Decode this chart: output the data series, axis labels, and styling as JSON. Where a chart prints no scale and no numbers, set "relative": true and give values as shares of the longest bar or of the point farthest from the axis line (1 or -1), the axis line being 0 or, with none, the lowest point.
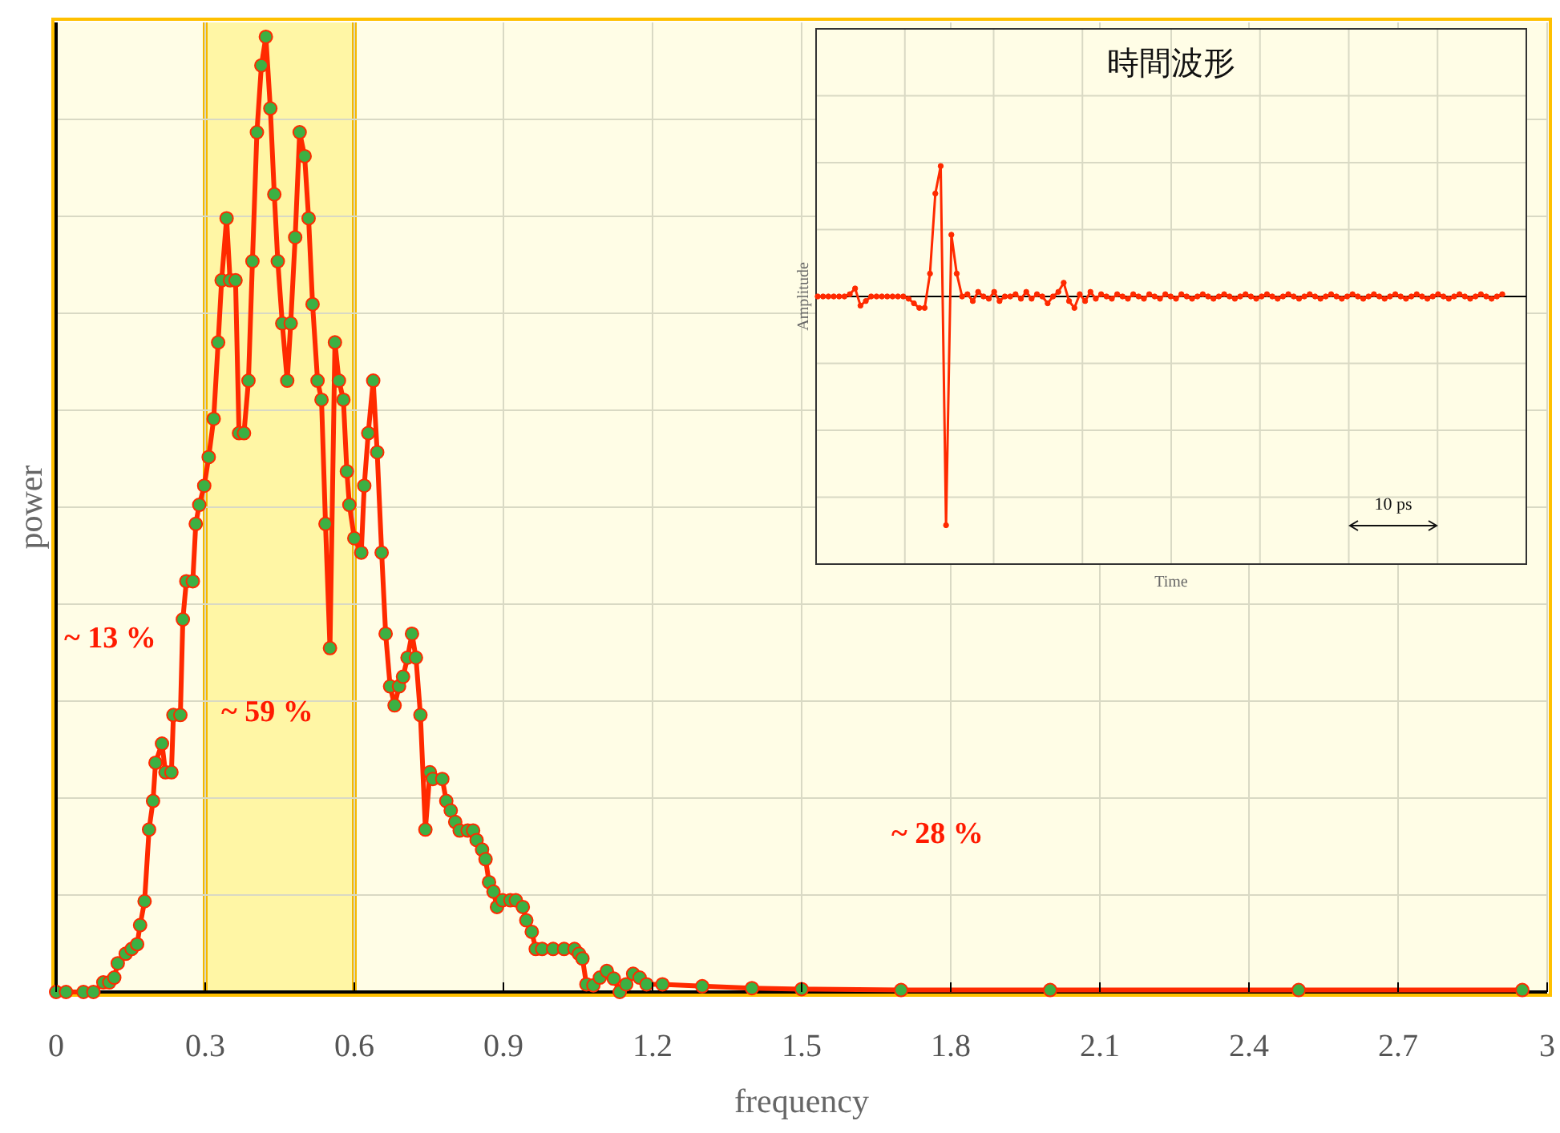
{
  "chart_data": [
    {
      "type": "line",
      "xlabel": "frequency",
      "ylabel": "power",
      "relative": true,
      "xlim": [
        0,
        3
      ],
      "xticks": [
        0,
        0.3,
        0.6,
        0.9,
        1.2,
        1.5,
        1.8,
        2.1,
        2.4,
        2.7,
        3
      ],
      "grid": true,
      "marker": "circle",
      "line_style": "solid",
      "bands": [
        {
          "axis": "x",
          "from": 0.3,
          "to": 0.6,
          "color": "#fff27a"
        }
      ],
      "annotations": [
        "~ 13 %",
        "~ 59 %",
        "~ 28 %"
      ],
      "series": [
        {
          "color": "#ff2a00",
          "x": [
            0,
            0.02,
            0.055,
            0.075,
            0.095,
            0.107,
            0.117,
            0.124,
            0.14,
            0.152,
            0.163,
            0.169,
            0.178,
            0.187,
            0.195,
            0.2,
            0.213,
            0.22,
            0.232,
            0.236,
            0.25,
            0.255,
            0.262,
            0.275,
            0.281,
            0.288,
            0.298,
            0.307,
            0.317,
            0.326,
            0.333,
            0.343,
            0.35,
            0.361,
            0.368,
            0.378,
            0.387,
            0.395,
            0.404,
            0.413,
            0.422,
            0.431,
            0.439,
            0.446,
            0.455,
            0.465,
            0.472,
            0.481,
            0.49,
            0.5,
            0.508,
            0.516,
            0.526,
            0.534,
            0.542,
            0.551,
            0.561,
            0.569,
            0.578,
            0.585,
            0.59,
            0.6,
            0.614,
            0.62,
            0.628,
            0.638,
            0.646,
            0.655,
            0.663,
            0.672,
            0.681,
            0.69,
            0.698,
            0.707,
            0.716,
            0.724,
            0.733,
            0.743,
            0.752,
            0.758,
            0.777,
            0.785,
            0.794,
            0.803,
            0.812,
            0.828,
            0.839,
            0.846,
            0.857,
            0.864,
            0.871,
            0.88,
            0.887,
            0.898,
            0.914,
            0.925,
            0.939,
            0.946,
            0.957,
            0.965,
            0.978,
            1.0,
            1.022,
            1.043,
            1.052,
            1.059,
            1.067,
            1.081,
            1.094,
            1.108,
            1.122,
            1.134,
            1.147,
            1.161,
            1.174,
            1.188,
            1.22,
            1.3,
            1.4,
            1.5,
            1.7,
            2.0,
            2.5,
            2.95
          ],
          "values": [
            0,
            0,
            0,
            0,
            0.01,
            0.01,
            0.015,
            0.03,
            0.04,
            0.045,
            0.05,
            0.07,
            0.095,
            0.17,
            0.2,
            0.24,
            0.26,
            0.23,
            0.23,
            0.29,
            0.29,
            0.39,
            0.43,
            0.43,
            0.49,
            0.51,
            0.53,
            0.56,
            0.6,
            0.68,
            0.745,
            0.81,
            0.745,
            0.745,
            0.585,
            0.585,
            0.64,
            0.765,
            0.9,
            0.97,
            1.0,
            0.925,
            0.835,
            0.765,
            0.7,
            0.64,
            0.7,
            0.79,
            0.9,
            0.875,
            0.81,
            0.72,
            0.64,
            0.62,
            0.49,
            0.36,
            0.68,
            0.64,
            0.62,
            0.545,
            0.51,
            0.475,
            0.46,
            0.53,
            0.585,
            0.64,
            0.565,
            0.46,
            0.375,
            0.32,
            0.3,
            0.32,
            0.33,
            0.35,
            0.375,
            0.35,
            0.29,
            0.17,
            0.23,
            0.223,
            0.223,
            0.2,
            0.19,
            0.178,
            0.169,
            0.169,
            0.169,
            0.159,
            0.149,
            0.139,
            0.115,
            0.105,
            0.089,
            0.096,
            0.096,
            0.096,
            0.089,
            0.075,
            0.063,
            0.045,
            0.045,
            0.045,
            0.045,
            0.045,
            0.04,
            0.035,
            0.008,
            0.007,
            0.015,
            0.022,
            0.014,
            0,
            0.008,
            0.019,
            0.015,
            0.008,
            0.008,
            0.006,
            0.004,
            0.003,
            0.002,
            0.002,
            0.002,
            0.002
          ]
        }
      ]
    },
    {
      "type": "line",
      "title": "時間波形",
      "xlabel": "Time",
      "ylabel": "Amplitude",
      "relative": true,
      "grid": true,
      "marker": "circle",
      "line_style": "solid",
      "annotations": [
        "10 ps"
      ],
      "categories": [
        null,
        null,
        null,
        null,
        null,
        null,
        null,
        null,
        null,
        null,
        null,
        null,
        null,
        null,
        null,
        null,
        null,
        null,
        null,
        null,
        null,
        null,
        null,
        null,
        null,
        null,
        null,
        null,
        null,
        null,
        null,
        null,
        null,
        null,
        null,
        null,
        null,
        null,
        null,
        null,
        null,
        null,
        null,
        null,
        null,
        null,
        null,
        null,
        null,
        null,
        null,
        null,
        null,
        null,
        null,
        null,
        null,
        null,
        null,
        null,
        null,
        null,
        null,
        null,
        null,
        null,
        null,
        null,
        null,
        null,
        null,
        null,
        null,
        null,
        null,
        null,
        null,
        null,
        null,
        null,
        null,
        null,
        null,
        null,
        null,
        null,
        null,
        null,
        null,
        null,
        null,
        null,
        null,
        null,
        null,
        null,
        null,
        null,
        null,
        null,
        null,
        null,
        null,
        null,
        null,
        null,
        null,
        null,
        null,
        null,
        null,
        null,
        null,
        null,
        null,
        null,
        null,
        null,
        null,
        null,
        null,
        null,
        null,
        null,
        null,
        null,
        null,
        null,
        null
      ],
      "series": [
        {
          "color": "#ff2a00",
          "values": [
            0,
            0,
            0,
            0,
            0,
            0,
            0.01,
            0.035,
            -0.04,
            -0.02,
            0,
            0,
            0,
            0,
            0,
            0,
            0,
            -0.01,
            -0.03,
            -0.05,
            -0.05,
            0.1,
            0.45,
            0.57,
            -1,
            0.27,
            0.1,
            0,
            0.01,
            -0.02,
            0.02,
            0,
            -0.01,
            0.02,
            -0.02,
            0,
            0,
            0.01,
            -0.01,
            0.02,
            -0.01,
            0.01,
            0,
            -0.03,
            0,
            0.02,
            0.06,
            -0.02,
            -0.05,
            0.01,
            -0.02,
            0.02,
            -0.01,
            0.01,
            0,
            -0.01,
            0.01,
            0,
            -0.01,
            0.01,
            0,
            -0.01,
            0.01,
            0,
            -0.01,
            0.01,
            0,
            -0.01,
            0.01,
            0,
            -0.01,
            0,
            0.01,
            0,
            -0.01,
            0,
            0.01,
            0,
            -0.01,
            0,
            0.01,
            0,
            -0.01,
            0,
            0.01,
            0,
            -0.01,
            0,
            0.01,
            0,
            -0.01,
            0,
            0.01,
            0,
            -0.01,
            0,
            0.01,
            0,
            -0.01,
            0,
            0.01,
            0,
            -0.01,
            0,
            0.01,
            0,
            -0.01,
            0,
            0.01,
            0,
            -0.01,
            0,
            0.01,
            0,
            -0.01,
            0,
            0.01,
            0,
            -0.01,
            0,
            0.01,
            0,
            -0.01,
            0,
            0.01,
            0,
            -0.01,
            0,
            0.01
          ]
        }
      ]
    }
  ]
}
